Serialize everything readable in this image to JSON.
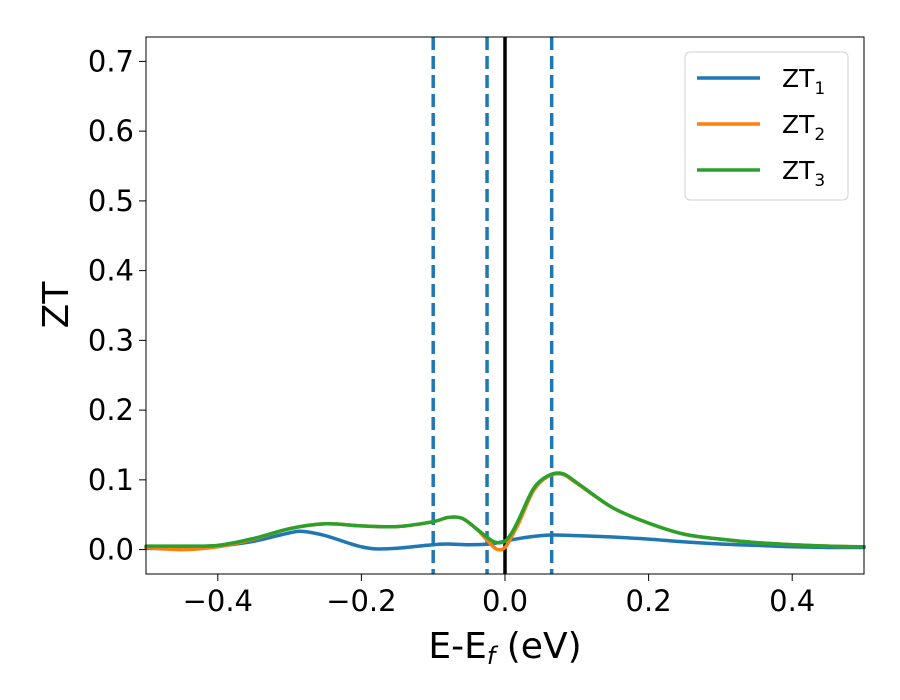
{
  "chart_data": {
    "type": "line",
    "xlabel": {
      "main": "E-E",
      "sub": "f",
      "unit": " (eV)"
    },
    "ylabel": "ZT",
    "xlim": [
      -0.5,
      0.5
    ],
    "ylim": [
      -0.035,
      0.735
    ],
    "xticks": [
      -0.4,
      -0.2,
      0.0,
      0.2,
      0.4
    ],
    "xtick_labels": [
      "−0.4",
      "−0.2",
      "0.0",
      "0.2",
      "0.4"
    ],
    "yticks": [
      0.0,
      0.1,
      0.2,
      0.3,
      0.4,
      0.5,
      0.6,
      0.7
    ],
    "ytick_labels": [
      "0.0",
      "0.1",
      "0.2",
      "0.3",
      "0.4",
      "0.5",
      "0.6",
      "0.7"
    ],
    "grid": false,
    "legend_position": "top-right",
    "vlines": [
      {
        "x": -0.1,
        "style": "dashed",
        "color": "#1f77b4"
      },
      {
        "x": -0.025,
        "style": "dashed",
        "color": "#1f77b4"
      },
      {
        "x": 0.0,
        "style": "solid",
        "color": "#000000"
      },
      {
        "x": 0.065,
        "style": "dashed",
        "color": "#1f77b4"
      }
    ],
    "series": [
      {
        "name": "ZT",
        "name_sub": "1",
        "color": "#1f77b4",
        "x": [
          -0.5,
          -0.45,
          -0.4,
          -0.35,
          -0.3,
          -0.28,
          -0.25,
          -0.22,
          -0.2,
          -0.18,
          -0.15,
          -0.12,
          -0.1,
          -0.08,
          -0.05,
          -0.02,
          0.0,
          0.02,
          0.05,
          0.07,
          0.1,
          0.15,
          0.2,
          0.25,
          0.3,
          0.35,
          0.4,
          0.45,
          0.5
        ],
        "y": [
          0.002,
          0.001,
          0.005,
          0.012,
          0.024,
          0.026,
          0.02,
          0.01,
          0.004,
          0.001,
          0.002,
          0.005,
          0.007,
          0.008,
          0.007,
          0.008,
          0.012,
          0.016,
          0.02,
          0.021,
          0.02,
          0.018,
          0.015,
          0.011,
          0.008,
          0.006,
          0.004,
          0.003,
          0.003
        ]
      },
      {
        "name": "ZT",
        "name_sub": "2",
        "color": "#ff7f0e",
        "x": [
          -0.5,
          -0.45,
          -0.4,
          -0.35,
          -0.3,
          -0.25,
          -0.2,
          -0.15,
          -0.1,
          -0.08,
          -0.06,
          -0.04,
          -0.02,
          -0.01,
          0.0,
          0.01,
          0.02,
          0.04,
          0.06,
          0.08,
          0.1,
          0.15,
          0.2,
          0.25,
          0.3,
          0.35,
          0.4,
          0.45,
          0.5
        ],
        "y": [
          0.003,
          0.0,
          0.004,
          0.015,
          0.03,
          0.037,
          0.034,
          0.033,
          0.04,
          0.046,
          0.045,
          0.03,
          0.008,
          0.0,
          0.003,
          0.02,
          0.04,
          0.085,
          0.105,
          0.108,
          0.095,
          0.06,
          0.038,
          0.022,
          0.015,
          0.01,
          0.007,
          0.005,
          0.004
        ]
      },
      {
        "name": "ZT",
        "name_sub": "3",
        "color": "#2ca02c",
        "x": [
          -0.5,
          -0.45,
          -0.4,
          -0.35,
          -0.3,
          -0.25,
          -0.2,
          -0.15,
          -0.1,
          -0.08,
          -0.06,
          -0.04,
          -0.02,
          -0.01,
          0.0,
          0.01,
          0.02,
          0.04,
          0.06,
          0.08,
          0.1,
          0.15,
          0.2,
          0.25,
          0.3,
          0.35,
          0.4,
          0.45,
          0.5
        ],
        "y": [
          0.005,
          0.005,
          0.006,
          0.016,
          0.03,
          0.037,
          0.034,
          0.033,
          0.04,
          0.046,
          0.045,
          0.03,
          0.014,
          0.01,
          0.012,
          0.025,
          0.045,
          0.088,
          0.106,
          0.109,
          0.096,
          0.06,
          0.038,
          0.022,
          0.015,
          0.01,
          0.007,
          0.005,
          0.004
        ]
      }
    ]
  }
}
